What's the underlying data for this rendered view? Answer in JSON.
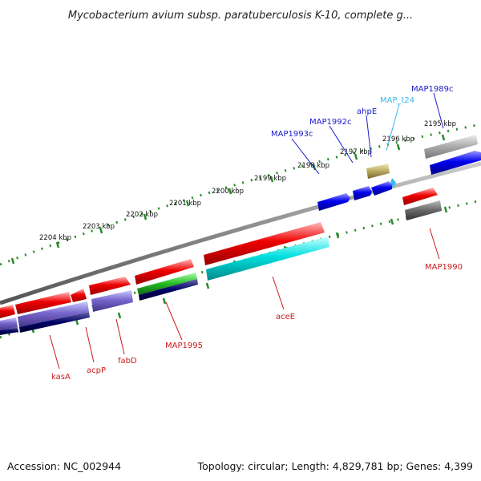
{
  "title": "Mycobacterium avium subsp. paratuberculosis K-10, complete g...",
  "accession": "Accession: NC_002944",
  "summary": "Topology: circular; Length: 4,829,781 bp; Genes: 4,399",
  "ruler": [
    "2195 kbp",
    "2196 kbp",
    "2197 kbp",
    "2198 kbp",
    "2199 kbp",
    "2200 kbp",
    "2201 kbp",
    "2202 kbp",
    "2203 kbp",
    "2204 kbp"
  ],
  "genes_top": [
    {
      "label": "MAP1989c",
      "color": "#1a1acc"
    },
    {
      "label": "MAP_t24",
      "color": "#33bbee"
    },
    {
      "label": "ahpE",
      "color": "#1a1acc"
    },
    {
      "label": "MAP1992c",
      "color": "#1a1acc"
    },
    {
      "label": "MAP1993c",
      "color": "#1a1acc"
    }
  ],
  "genes_bottom": [
    {
      "label": "MAP1990",
      "color": "#cc1a1a"
    },
    {
      "label": "aceE",
      "color": "#cc1a1a"
    },
    {
      "label": "MAP1995",
      "color": "#cc1a1a"
    },
    {
      "label": "fabD",
      "color": "#cc1a1a"
    },
    {
      "label": "acpP",
      "color": "#cc1a1a"
    },
    {
      "label": "kasA",
      "color": "#cc1a1a"
    }
  ],
  "colors": {
    "forward": "#ee0000",
    "reverse": "#0000ee",
    "cds": "#00e0e0",
    "misc": "#7766cc",
    "gene": "#000066",
    "rna": "#b8a860",
    "pseudo": "#707070",
    "backbone": "#888888"
  }
}
